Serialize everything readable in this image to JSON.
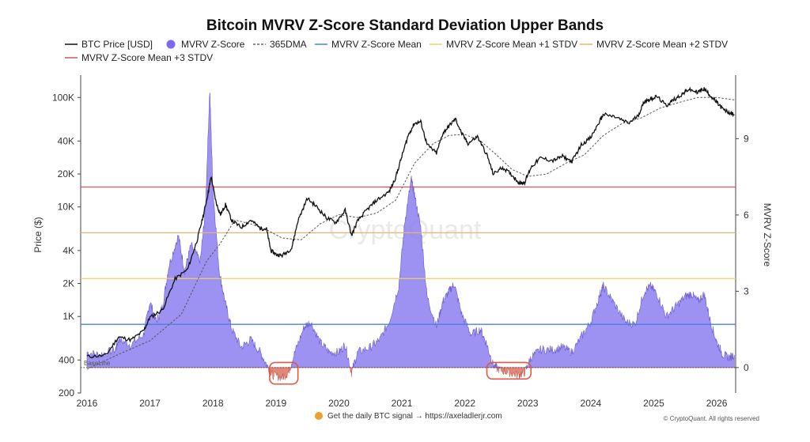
{
  "chart_data": {
    "type": "line",
    "title": "Bitcoin MVRV Z-Score Standard Deviation Upper Bands",
    "left_axis": {
      "label": "Price ($)",
      "scale": "log",
      "range": [
        200,
        160000
      ],
      "ticks": [
        "200",
        "400",
        "1K",
        "2K",
        "4K",
        "10K",
        "20K",
        "40K",
        "100K"
      ],
      "tick_values": [
        200,
        400,
        1000,
        2000,
        4000,
        10000,
        20000,
        40000,
        100000
      ]
    },
    "right_axis": {
      "label": "MVRV Z-Score",
      "range": [
        -1,
        11.5
      ],
      "ticks": [
        "0",
        "3",
        "6",
        "9"
      ],
      "tick_values": [
        0,
        3,
        6,
        9
      ]
    },
    "x_axis": {
      "range": [
        2015.9,
        2026.3
      ],
      "ticks": [
        "2016",
        "2017",
        "2018",
        "2019",
        "2020",
        "2021",
        "2022",
        "2023",
        "2024",
        "2025",
        "2026"
      ],
      "tick_values": [
        2016,
        2017,
        2018,
        2019,
        2020,
        2021,
        2022,
        2023,
        2024,
        2025,
        2026
      ]
    },
    "legend": [
      {
        "label": "BTC Price [USD]",
        "color": "#111111",
        "style": "solid"
      },
      {
        "label": "MVRV Z-Score",
        "color": "#7b68ee",
        "style": "dot"
      },
      {
        "label": "365DMA",
        "color": "#666666",
        "style": "dashed"
      },
      {
        "label": "MVRV Z-Score Mean",
        "color": "#4a7fe0",
        "style": "solid"
      },
      {
        "label": "MVRV Z-Score Mean +1 STDV",
        "color": "#f0d060",
        "style": "solid"
      },
      {
        "label": "MVRV Z-Score Mean +2 STDV",
        "color": "#e7b56a",
        "style": "solid"
      },
      {
        "label": "MVRV Z-Score Mean +3 STDV",
        "color": "#d9535c",
        "style": "solid"
      }
    ],
    "bands": [
      {
        "name": "MVRV Z-Score Mean",
        "zscore": 1.7,
        "color": "#4a7fe0"
      },
      {
        "name": "MVRV Z-Score Mean +1 STDV",
        "zscore": 3.5,
        "color": "#f0d060"
      },
      {
        "name": "MVRV Z-Score Mean +2 STDV",
        "zscore": 5.3,
        "color": "#e7b56a"
      },
      {
        "name": "MVRV Z-Score Mean +3 STDV",
        "zscore": 7.1,
        "color": "#d9535c"
      }
    ],
    "series": [
      {
        "name": "BTC Price [USD]",
        "color": "#111111",
        "points": [
          [
            2016.0,
            430
          ],
          [
            2016.3,
            440
          ],
          [
            2016.5,
            650
          ],
          [
            2016.7,
            610
          ],
          [
            2016.9,
            740
          ],
          [
            2017.0,
            980
          ],
          [
            2017.2,
            1150
          ],
          [
            2017.4,
            2200
          ],
          [
            2017.6,
            2700
          ],
          [
            2017.75,
            5000
          ],
          [
            2017.85,
            8500
          ],
          [
            2017.93,
            14000
          ],
          [
            2017.97,
            19000
          ],
          [
            2018.05,
            11000
          ],
          [
            2018.12,
            8500
          ],
          [
            2018.2,
            10500
          ],
          [
            2018.3,
            7500
          ],
          [
            2018.45,
            6500
          ],
          [
            2018.6,
            7600
          ],
          [
            2018.75,
            6400
          ],
          [
            2018.85,
            6300
          ],
          [
            2018.92,
            4000
          ],
          [
            2019.0,
            3700
          ],
          [
            2019.1,
            3600
          ],
          [
            2019.25,
            4200
          ],
          [
            2019.35,
            7500
          ],
          [
            2019.5,
            12000
          ],
          [
            2019.65,
            10000
          ],
          [
            2019.8,
            8000
          ],
          [
            2019.95,
            7200
          ],
          [
            2020.1,
            9300
          ],
          [
            2020.2,
            5500
          ],
          [
            2020.3,
            7500
          ],
          [
            2020.45,
            9500
          ],
          [
            2020.6,
            11500
          ],
          [
            2020.8,
            13800
          ],
          [
            2020.9,
            18500
          ],
          [
            2021.0,
            29000
          ],
          [
            2021.1,
            45000
          ],
          [
            2021.2,
            58000
          ],
          [
            2021.3,
            60000
          ],
          [
            2021.4,
            37000
          ],
          [
            2021.55,
            31000
          ],
          [
            2021.65,
            47000
          ],
          [
            2021.75,
            55000
          ],
          [
            2021.85,
            64000
          ],
          [
            2021.95,
            47000
          ],
          [
            2022.05,
            38000
          ],
          [
            2022.2,
            44000
          ],
          [
            2022.35,
            30000
          ],
          [
            2022.45,
            20000
          ],
          [
            2022.6,
            23000
          ],
          [
            2022.75,
            19500
          ],
          [
            2022.87,
            16500
          ],
          [
            2022.95,
            16800
          ],
          [
            2023.05,
            23000
          ],
          [
            2023.2,
            28000
          ],
          [
            2023.4,
            26500
          ],
          [
            2023.55,
            29000
          ],
          [
            2023.7,
            26000
          ],
          [
            2023.85,
            37000
          ],
          [
            2024.0,
            43000
          ],
          [
            2024.15,
            62000
          ],
          [
            2024.2,
            70000
          ],
          [
            2024.4,
            66000
          ],
          [
            2024.6,
            58000
          ],
          [
            2024.75,
            68000
          ],
          [
            2024.85,
            92000
          ],
          [
            2024.95,
            97000
          ],
          [
            2025.05,
            102000
          ],
          [
            2025.2,
            84000
          ],
          [
            2025.3,
            94000
          ],
          [
            2025.45,
            107000
          ],
          [
            2025.55,
            118000
          ],
          [
            2025.7,
            112000
          ],
          [
            2025.8,
            120000
          ],
          [
            2025.9,
            104000
          ],
          [
            2026.0,
            90000
          ],
          [
            2026.1,
            78000
          ],
          [
            2026.2,
            72000
          ],
          [
            2026.28,
            70000
          ]
        ]
      },
      {
        "name": "MVRV Z-Score",
        "color": "#7b68ee",
        "points": [
          [
            2016.0,
            0.6
          ],
          [
            2016.2,
            0.5
          ],
          [
            2016.45,
            0.7
          ],
          [
            2016.5,
            1.1
          ],
          [
            2016.7,
            0.9
          ],
          [
            2016.9,
            1.3
          ],
          [
            2017.0,
            2.6
          ],
          [
            2017.1,
            1.8
          ],
          [
            2017.2,
            2.4
          ],
          [
            2017.3,
            4.0
          ],
          [
            2017.45,
            5.2
          ],
          [
            2017.55,
            3.8
          ],
          [
            2017.65,
            4.8
          ],
          [
            2017.8,
            4.2
          ],
          [
            2017.88,
            6.2
          ],
          [
            2017.95,
            10.9
          ],
          [
            2018.0,
            7.0
          ],
          [
            2018.1,
            3.8
          ],
          [
            2018.2,
            2.5
          ],
          [
            2018.3,
            1.5
          ],
          [
            2018.45,
            0.8
          ],
          [
            2018.6,
            1.1
          ],
          [
            2018.75,
            0.6
          ],
          [
            2018.88,
            0.0
          ],
          [
            2018.95,
            -0.3
          ],
          [
            2019.1,
            -0.4
          ],
          [
            2019.2,
            -0.2
          ],
          [
            2019.3,
            0.6
          ],
          [
            2019.45,
            1.6
          ],
          [
            2019.55,
            1.8
          ],
          [
            2019.7,
            1.0
          ],
          [
            2019.85,
            0.6
          ],
          [
            2020.0,
            0.6
          ],
          [
            2020.1,
            0.9
          ],
          [
            2020.2,
            -0.2
          ],
          [
            2020.3,
            0.6
          ],
          [
            2020.5,
            0.8
          ],
          [
            2020.65,
            1.1
          ],
          [
            2020.8,
            1.8
          ],
          [
            2020.95,
            3.2
          ],
          [
            2021.05,
            5.8
          ],
          [
            2021.15,
            7.4
          ],
          [
            2021.2,
            6.8
          ],
          [
            2021.3,
            5.5
          ],
          [
            2021.4,
            2.8
          ],
          [
            2021.55,
            1.6
          ],
          [
            2021.65,
            2.6
          ],
          [
            2021.75,
            3.0
          ],
          [
            2021.83,
            3.3
          ],
          [
            2021.95,
            2.1
          ],
          [
            2022.1,
            1.3
          ],
          [
            2022.25,
            1.5
          ],
          [
            2022.35,
            0.9
          ],
          [
            2022.45,
            0.1
          ],
          [
            2022.55,
            -0.1
          ],
          [
            2022.7,
            -0.2
          ],
          [
            2022.85,
            -0.3
          ],
          [
            2022.95,
            -0.2
          ],
          [
            2023.05,
            0.4
          ],
          [
            2023.2,
            0.7
          ],
          [
            2023.4,
            0.7
          ],
          [
            2023.55,
            0.8
          ],
          [
            2023.7,
            0.6
          ],
          [
            2023.85,
            1.2
          ],
          [
            2024.0,
            1.8
          ],
          [
            2024.15,
            2.9
          ],
          [
            2024.2,
            3.2
          ],
          [
            2024.35,
            2.6
          ],
          [
            2024.55,
            1.8
          ],
          [
            2024.7,
            1.7
          ],
          [
            2024.85,
            3.0
          ],
          [
            2024.95,
            3.2
          ],
          [
            2025.05,
            2.9
          ],
          [
            2025.2,
            2.0
          ],
          [
            2025.35,
            2.4
          ],
          [
            2025.5,
            2.8
          ],
          [
            2025.6,
            2.9
          ],
          [
            2025.7,
            2.6
          ],
          [
            2025.8,
            2.9
          ],
          [
            2025.9,
            1.8
          ],
          [
            2026.0,
            1.0
          ],
          [
            2026.1,
            0.5
          ],
          [
            2026.2,
            0.4
          ],
          [
            2026.28,
            0.5
          ]
        ]
      },
      {
        "name": "365DMA",
        "color": "#666666",
        "points": [
          [
            2016.0,
            330
          ],
          [
            2016.5,
            450
          ],
          [
            2017.0,
            600
          ],
          [
            2017.5,
            1050
          ],
          [
            2017.9,
            3200
          ],
          [
            2018.1,
            4500
          ],
          [
            2018.35,
            7600
          ],
          [
            2018.6,
            7000
          ],
          [
            2018.85,
            6200
          ],
          [
            2019.1,
            5200
          ],
          [
            2019.4,
            5000
          ],
          [
            2019.7,
            7000
          ],
          [
            2020.0,
            8500
          ],
          [
            2020.3,
            8000
          ],
          [
            2020.6,
            8800
          ],
          [
            2020.9,
            11500
          ],
          [
            2021.2,
            25000
          ],
          [
            2021.5,
            38000
          ],
          [
            2021.75,
            45000
          ],
          [
            2022.0,
            46000
          ],
          [
            2022.25,
            40000
          ],
          [
            2022.5,
            30000
          ],
          [
            2022.75,
            22000
          ],
          [
            2023.0,
            19000
          ],
          [
            2023.3,
            20000
          ],
          [
            2023.6,
            25000
          ],
          [
            2023.9,
            30000
          ],
          [
            2024.2,
            45000
          ],
          [
            2024.5,
            58000
          ],
          [
            2024.8,
            65000
          ],
          [
            2025.1,
            80000
          ],
          [
            2025.4,
            90000
          ],
          [
            2025.7,
            100000
          ],
          [
            2026.0,
            100000
          ],
          [
            2026.28,
            95000
          ]
        ]
      }
    ],
    "highlight_zones": [
      {
        "x": [
          2018.9,
          2019.35
        ],
        "zscore": [
          -0.65,
          0.2
        ],
        "color": "#e05a40"
      },
      {
        "x": [
          2022.35,
          2023.05
        ],
        "zscore": [
          -0.45,
          0.2
        ],
        "color": "#e05a40"
      }
    ],
    "baseline_label": "BaseLine",
    "watermark": "CryptoQuant",
    "footer": "Get the daily BTC signal → https://axeladlerjr.com",
    "copyright": "© CryptoQuant. All rights reserved"
  }
}
